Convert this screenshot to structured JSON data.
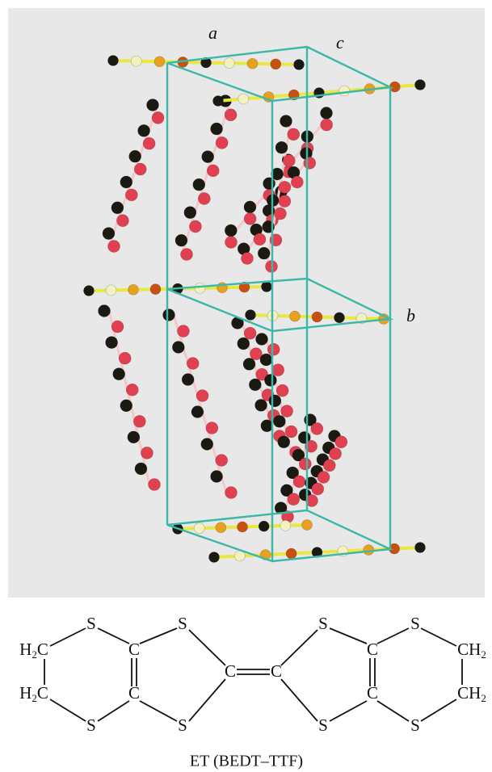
{
  "crystal": {
    "axis_labels": {
      "a": "a",
      "c": "c",
      "b": "b"
    }
  },
  "molecule": {
    "atoms": {
      "s": "S",
      "c": "C",
      "h2c": [
        "H",
        "2",
        "C"
      ],
      "ch2": [
        "C",
        "H",
        "2"
      ]
    },
    "caption": "ET (BEDT–TTF)"
  }
}
